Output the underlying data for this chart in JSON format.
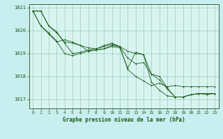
{
  "title": "Graphe pression niveau de la mer (hPa)",
  "bg_color": "#c8eef0",
  "plot_bg_color": "#d8f4f0",
  "grid_color": "#99ccbb",
  "line_color": "#1a5c1a",
  "spine_color": "#336633",
  "ylim": [
    1016.6,
    1021.15
  ],
  "xlim": [
    -0.5,
    23.5
  ],
  "yticks": [
    1017,
    1018,
    1019,
    1020,
    1021
  ],
  "xticks": [
    0,
    1,
    2,
    3,
    4,
    5,
    6,
    7,
    8,
    9,
    10,
    11,
    12,
    13,
    14,
    15,
    16,
    17,
    18,
    19,
    20,
    21,
    22,
    23
  ],
  "series": [
    [
      1020.85,
      1020.2,
      1019.9,
      1019.55,
      1019.0,
      1018.9,
      1019.0,
      1019.1,
      1019.15,
      1019.2,
      1019.3,
      1019.25,
      1018.35,
      1019.05,
      1018.95,
      1017.75,
      1017.4,
      1017.15,
      1017.1,
      1017.1,
      1017.2,
      1017.25,
      1017.2,
      1017.25
    ],
    [
      1020.85,
      1020.2,
      1019.85,
      1019.5,
      1019.6,
      1019.5,
      1019.35,
      1019.25,
      1019.2,
      1019.3,
      1019.4,
      1019.3,
      1018.3,
      1018.0,
      1017.8,
      1017.6,
      1017.7,
      1017.55,
      1017.6,
      1017.55,
      1017.55,
      1017.55,
      1017.55,
      1017.55
    ],
    [
      1020.85,
      1020.85,
      1020.2,
      1019.9,
      1019.5,
      1019.45,
      1019.35,
      1019.1,
      1019.15,
      1019.2,
      1019.35,
      1019.3,
      1018.8,
      1018.55,
      1018.6,
      1018.1,
      1017.85,
      1017.45,
      1017.1,
      1017.1,
      1017.2,
      1017.25,
      1017.25,
      1017.25
    ],
    [
      1020.85,
      1020.85,
      1020.2,
      1019.95,
      1019.45,
      1019.0,
      1019.05,
      1019.15,
      1019.2,
      1019.35,
      1019.45,
      1019.3,
      1019.1,
      1019.0,
      1018.95,
      1018.1,
      1018.0,
      1017.5,
      1017.1,
      1017.1,
      1017.2,
      1017.25,
      1017.25,
      1017.25
    ]
  ]
}
